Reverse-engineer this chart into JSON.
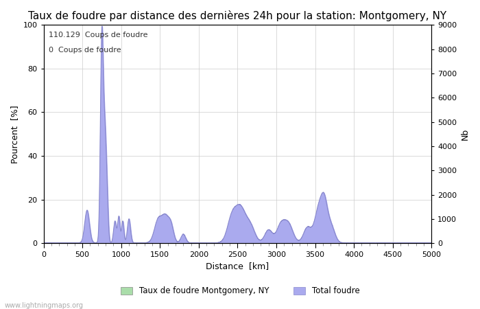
{
  "title": "Taux de foudre par distance des dernières 24h pour la station: Montgomery, NY",
  "xlabel": "Distance  [km]",
  "ylabel_left": "Pourcent  [%]",
  "ylabel_right": "Nb",
  "annotation_line1": "110.129  Coups de foudre",
  "annotation_line2": "0  Coups de foudre",
  "legend_label1": "Taux de foudre Montgomery, NY",
  "legend_label2": "Total foudre",
  "legend_color1": "#aaddaa",
  "legend_color2": "#aaaaee",
  "line_color": "#8888cc",
  "fill_color": "#aaaaee",
  "watermark": "www.lightningmaps.org",
  "xlim": [
    0,
    5000
  ],
  "ylim_left": [
    0,
    100
  ],
  "ylim_right": [
    0,
    9000
  ],
  "xticks": [
    0,
    500,
    1000,
    1500,
    2000,
    2500,
    3000,
    3500,
    4000,
    4500,
    5000
  ],
  "yticks_left": [
    0,
    20,
    40,
    60,
    80,
    100
  ],
  "yticks_right": [
    0,
    1000,
    2000,
    3000,
    4000,
    5000,
    6000,
    7000,
    8000,
    9000
  ],
  "background_color": "#ffffff",
  "title_fontsize": 11,
  "axis_fontsize": 9,
  "tick_fontsize": 8
}
